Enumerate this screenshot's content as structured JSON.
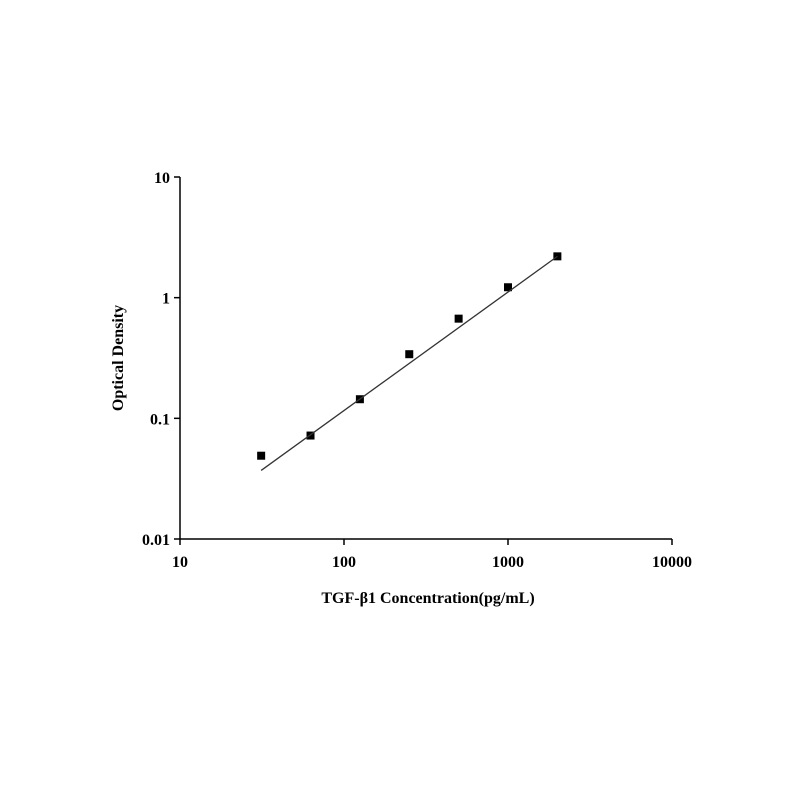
{
  "chart_data": {
    "type": "scatter",
    "xlabel": "TGF-β1 Concentration(pg/mL)",
    "ylabel": "Optical Density",
    "xscale": "log",
    "yscale": "log",
    "xlim": [
      10,
      10000
    ],
    "xticks": [
      10,
      100,
      1000,
      10000
    ],
    "ylim": [
      0.01,
      10
    ],
    "yticks": [
      0.01,
      0.1,
      1,
      10
    ],
    "series": [
      {
        "style": "markers",
        "color": "#000000",
        "x": [
          31.25,
          62.5,
          125,
          250,
          500,
          1000,
          2000
        ],
        "values": [
          0.049,
          0.072,
          0.144,
          0.34,
          0.67,
          1.22,
          2.2
        ]
      },
      {
        "style": "line",
        "color": "#333333",
        "x": [
          31.25,
          2000
        ],
        "values": [
          0.037,
          2.2
        ]
      }
    ]
  }
}
